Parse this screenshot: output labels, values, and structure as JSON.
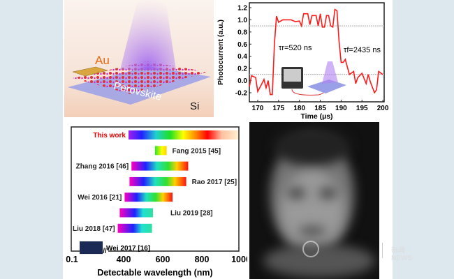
{
  "schematic": {
    "labels": {
      "au": "Au",
      "perovskite": "Perovskite",
      "si": "Si"
    }
  },
  "watermark": {
    "logo_text": "清華大學 Tsinghua University",
    "news_text": "新闻 NEWS"
  },
  "chart_data": [
    {
      "type": "line",
      "xlabel": "Time (µs)",
      "ylabel": "Photocurrent (a.u.)",
      "xlim": [
        168,
        200
      ],
      "ylim": [
        -0.3,
        1.25
      ],
      "xticks": [
        "170",
        "175",
        "180",
        "185",
        "190",
        "195",
        "200"
      ],
      "yticks": [
        "-0.2",
        "0.0",
        "0.2",
        "0.4",
        "0.6",
        "0.8",
        "1.0",
        "1.2"
      ],
      "reference_lines": [
        0.9,
        0.1
      ],
      "annotations": {
        "rise": "τr=520 ns",
        "fall": "τf=2435 ns"
      },
      "series": [
        {
          "name": "photocurrent",
          "color": "#ff1a1a",
          "x": [
            168,
            168.5,
            169.5,
            170,
            171,
            171.5,
            172,
            172.5,
            173,
            173.5,
            174,
            174.5,
            175,
            176,
            177,
            178,
            179,
            180,
            180.5,
            181,
            182,
            182.5,
            183,
            184,
            184.5,
            185,
            185.5,
            186,
            186.5,
            187,
            187.5,
            188,
            188.5,
            189,
            189.5,
            190,
            190.5,
            191,
            191.5,
            192,
            193,
            193.5,
            194,
            195,
            196,
            196.5,
            197,
            198,
            198.5,
            199,
            200
          ],
          "y": [
            -0.1,
            0.08,
            0.05,
            -0.18,
            -0.05,
            0.02,
            -0.12,
            0,
            -0.23,
            -0.23,
            0.6,
            1.06,
            0.96,
            1.0,
            1.0,
            1.0,
            0.97,
            0.98,
            0.9,
            1.1,
            1.1,
            0.92,
            1.07,
            1.07,
            0.9,
            1.1,
            0.88,
            0.88,
            1.07,
            1.07,
            0.9,
            0.88,
            1.17,
            1.15,
            0.65,
            0.3,
            0.3,
            0.35,
            0.22,
            0.1,
            0.15,
            -0.05,
            0.05,
            0.12,
            -0.05,
            0.1,
            -0.02,
            -0.2,
            -0.15,
            0.15,
            0.1
          ]
        }
      ]
    },
    {
      "type": "bar",
      "orientation": "horizontal",
      "xlabel": "Detectable wavelength (nm)",
      "xticks": [
        "0.1",
        "400",
        "600",
        "800",
        "1000"
      ],
      "axis_break": true,
      "bars": [
        {
          "label": "This work",
          "start": 425,
          "end": 1060,
          "highlight": true
        },
        {
          "label": "Fang 2015 [45]",
          "start": 560,
          "end": 620
        },
        {
          "label": "Zhang 2016 [46]",
          "start": 440,
          "end": 730
        },
        {
          "label": "Rao 2017 [25]",
          "start": 430,
          "end": 720
        },
        {
          "label": "Wei 2016 [21]",
          "start": 405,
          "end": 650
        },
        {
          "label": "Liu 2019 [28]",
          "start": 380,
          "end": 550
        },
        {
          "label": "Liu 2018 [47]",
          "start": 370,
          "end": 545
        },
        {
          "label": "Wei 2017 [16]",
          "start": 0.1,
          "end": 0.1,
          "xray": true
        }
      ]
    }
  ]
}
